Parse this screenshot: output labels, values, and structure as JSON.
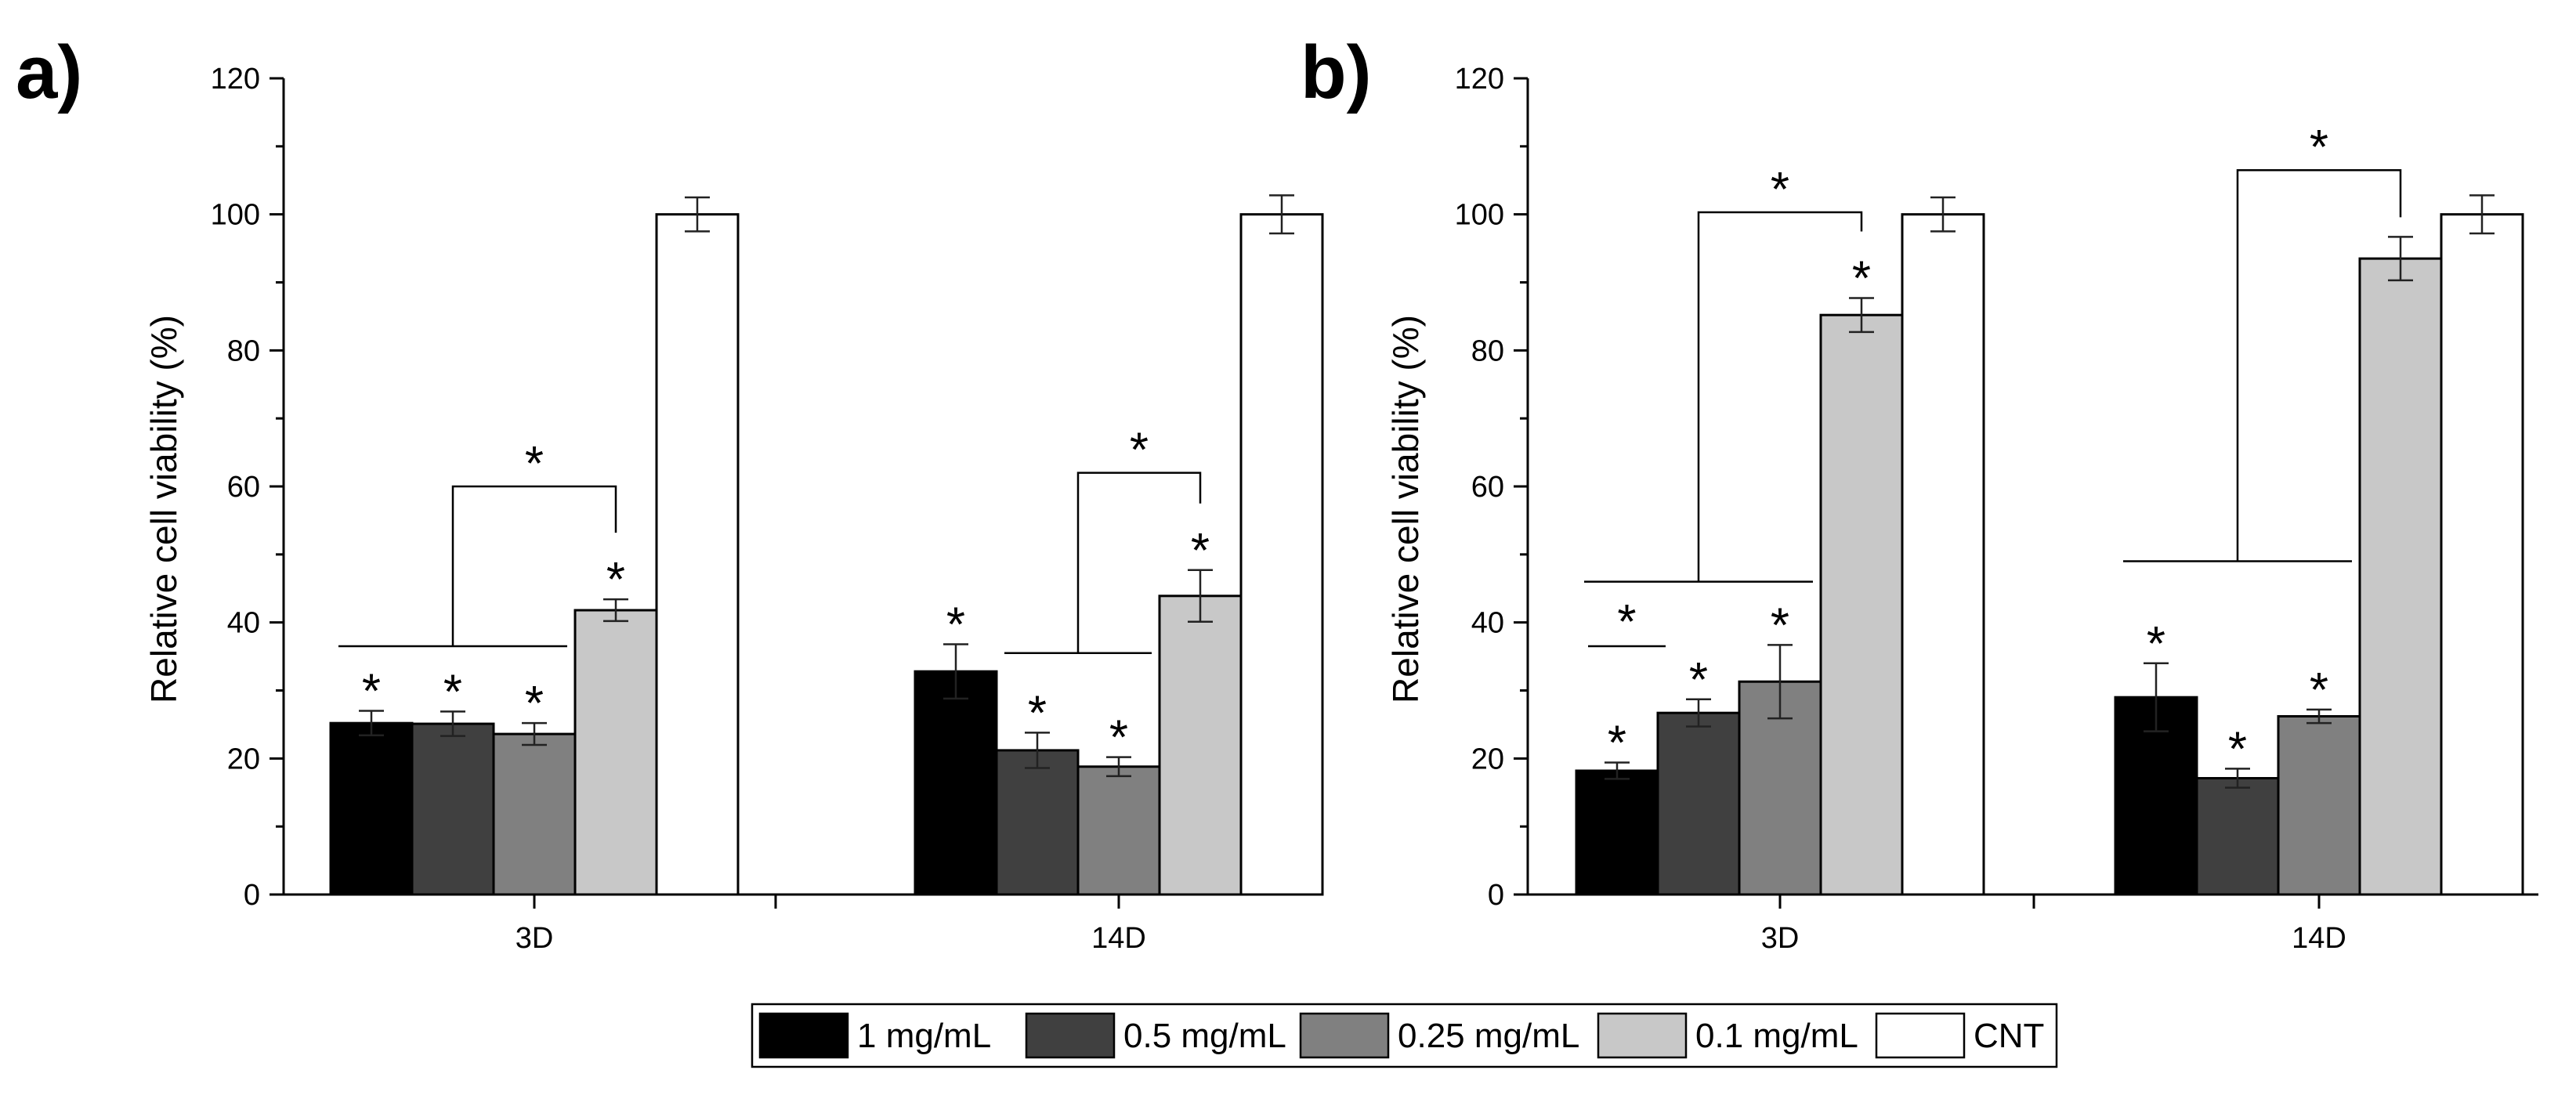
{
  "chart_data": [
    {
      "panel": "a)",
      "type": "bar",
      "ylabel": "Relative cell viability (%)",
      "ylim": [
        0,
        120
      ],
      "yticks": [
        "0",
        "20",
        "40",
        "60",
        "80",
        "100",
        "120"
      ],
      "categories": [
        "3D",
        "14D"
      ],
      "series": [
        {
          "name": "1 mg/mL",
          "color": "#000000",
          "values": [
            25.2,
            32.8
          ],
          "errors": [
            1.8,
            4.0
          ],
          "stars": [
            true,
            true
          ]
        },
        {
          "name": "0.5 mg/mL",
          "color": "#404040",
          "values": [
            25.1,
            21.2
          ],
          "errors": [
            1.8,
            2.6
          ],
          "stars": [
            true,
            true
          ]
        },
        {
          "name": "0.25 mg/mL",
          "color": "#808080",
          "values": [
            23.6,
            18.8
          ],
          "errors": [
            1.6,
            1.4
          ],
          "stars": [
            true,
            true
          ]
        },
        {
          "name": "0.1 mg/mL",
          "color": "#c8c8c8",
          "values": [
            41.8,
            43.9
          ],
          "errors": [
            1.6,
            3.8
          ],
          "stars": [
            true,
            true
          ]
        },
        {
          "name": "CNT",
          "color": "#ffffff",
          "values": [
            100,
            100
          ],
          "errors": [
            2.5,
            2.8
          ],
          "stars": [
            false,
            false
          ]
        }
      ],
      "significance": [
        {
          "group": 0,
          "from_series": 0,
          "to_series": 2,
          "target_series": 3,
          "level": 60,
          "group_line": 36.5,
          "label": "*"
        },
        {
          "group": 1,
          "from_series": 1,
          "to_series": 2,
          "target_series": 3,
          "level": 62,
          "group_line": 35.5,
          "label": "*"
        }
      ],
      "sub_significance": []
    },
    {
      "panel": "b)",
      "type": "bar",
      "ylabel": "Relative cell viability (%)",
      "ylim": [
        0,
        120
      ],
      "yticks": [
        "0",
        "20",
        "40",
        "60",
        "80",
        "100",
        "120"
      ],
      "categories": [
        "3D",
        "14D"
      ],
      "series": [
        {
          "name": "1 mg/mL",
          "color": "#000000",
          "values": [
            18.2,
            29.0
          ],
          "errors": [
            1.2,
            5.0
          ],
          "stars": [
            true,
            true
          ]
        },
        {
          "name": "0.5 mg/mL",
          "color": "#404040",
          "values": [
            26.7,
            17.1
          ],
          "errors": [
            2.0,
            1.4
          ],
          "stars": [
            true,
            true
          ]
        },
        {
          "name": "0.25 mg/mL",
          "color": "#808080",
          "values": [
            31.3,
            26.2
          ],
          "errors": [
            5.4,
            1.0
          ],
          "stars": [
            true,
            true
          ]
        },
        {
          "name": "0.1 mg/mL",
          "color": "#c8c8c8",
          "values": [
            85.2,
            93.5
          ],
          "errors": [
            2.5,
            3.2
          ],
          "stars": [
            true,
            false
          ]
        },
        {
          "name": "CNT",
          "color": "#ffffff",
          "values": [
            100,
            100
          ],
          "errors": [
            2.5,
            2.8
          ],
          "stars": [
            false,
            false
          ]
        }
      ],
      "significance": [
        {
          "group": 0,
          "from_series": 0,
          "to_series": 2,
          "target_series": 3,
          "level": 100.3,
          "group_line": 46,
          "label": "*"
        },
        {
          "group": 1,
          "from_series": 0,
          "to_series": 2,
          "target_series": 3,
          "level": 106.5,
          "group_line": 49,
          "label": "*"
        }
      ],
      "sub_significance": [
        {
          "group": 0,
          "from_series": 0,
          "to_series": 1,
          "level": 36.5,
          "label": "*"
        }
      ]
    }
  ],
  "legend": {
    "items": [
      {
        "label": "1 mg/mL",
        "color": "#000000"
      },
      {
        "label": "0.5 mg/mL",
        "color": "#404040"
      },
      {
        "label": "0.25 mg/mL",
        "color": "#808080"
      },
      {
        "label": "0.1 mg/mL",
        "color": "#c8c8c8"
      },
      {
        "label": "CNT",
        "color": "#ffffff"
      }
    ]
  }
}
